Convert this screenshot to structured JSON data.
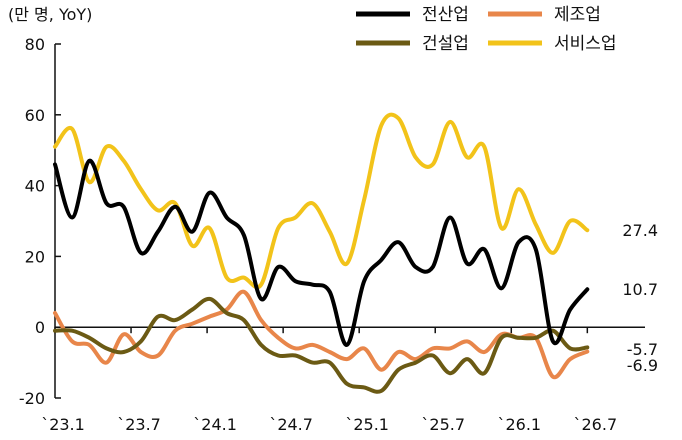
{
  "chart_data": {
    "type": "line",
    "unit_label": "(만 명, YoY)",
    "ylim": [
      -20,
      80
    ],
    "yticks": [
      -20,
      0,
      20,
      40,
      60,
      80
    ],
    "x_start_month_index": 0,
    "x_ticks": [
      {
        "label": "`23.1",
        "month_index": 0
      },
      {
        "label": "`23.7",
        "month_index": 6
      },
      {
        "label": "`24.1",
        "month_index": 12
      },
      {
        "label": "`24.7",
        "month_index": 18
      },
      {
        "label": "`25.1",
        "month_index": 24
      },
      {
        "label": "`25.7",
        "month_index": 30
      },
      {
        "label": "`26.1",
        "month_index": 36
      },
      {
        "label": "`26.7",
        "month_index": 42
      }
    ],
    "legend_placement": "top-right",
    "grid": false,
    "series": [
      {
        "name": "전산업",
        "color": "#000000",
        "end_label": "10.7",
        "values": [
          46,
          31,
          47,
          35,
          34,
          21,
          27,
          34,
          27,
          38,
          31,
          26,
          8,
          17,
          13,
          12,
          10,
          -5,
          13,
          19,
          24,
          17,
          17,
          31,
          18,
          22,
          11,
          24,
          22,
          -4,
          5,
          10.7
        ]
      },
      {
        "name": "제조업",
        "color": "#E8864A",
        "end_label": "-6.9",
        "values": [
          4,
          -4,
          -5,
          -10,
          -2,
          -7,
          -8,
          -1,
          1,
          3,
          5,
          10,
          2,
          -3,
          -6,
          -5,
          -7,
          -9,
          -6,
          -12,
          -7,
          -9,
          -6,
          -6,
          -4,
          -7,
          -2,
          -3,
          -3,
          -14,
          -9,
          -6.9
        ]
      },
      {
        "name": "건설업",
        "color": "#6B5A14",
        "end_label": "-5.7",
        "values": [
          -1,
          -1,
          -3,
          -6,
          -7,
          -4,
          3,
          2,
          5,
          8,
          4,
          2,
          -5,
          -8,
          -8,
          -10,
          -10,
          -16,
          -17,
          -18,
          -12,
          -10,
          -8,
          -13,
          -9,
          -13,
          -3,
          -3,
          -3,
          -1,
          -6,
          -5.7
        ]
      },
      {
        "name": "서비스업",
        "color": "#F2C31A",
        "end_label": "27.4",
        "values": [
          51,
          56,
          41,
          51,
          47,
          39,
          33,
          35,
          23,
          28,
          14,
          14,
          12,
          28,
          31,
          35,
          27,
          18,
          36,
          57,
          59,
          48,
          46,
          58,
          48,
          51,
          28,
          39,
          29,
          21,
          30,
          27.4
        ]
      }
    ]
  }
}
